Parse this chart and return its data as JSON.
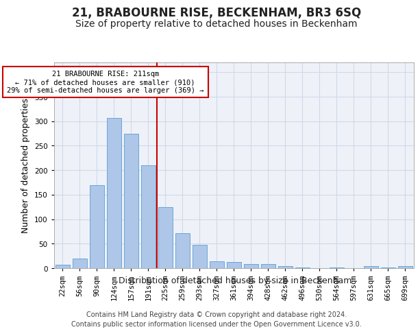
{
  "title": "21, BRABOURNE RISE, BECKENHAM, BR3 6SQ",
  "subtitle": "Size of property relative to detached houses in Beckenham",
  "xlabel": "Distribution of detached houses by size in Beckenham",
  "ylabel": "Number of detached properties",
  "categories": [
    "22sqm",
    "56sqm",
    "90sqm",
    "124sqm",
    "157sqm",
    "191sqm",
    "225sqm",
    "259sqm",
    "293sqm",
    "327sqm",
    "361sqm",
    "394sqm",
    "428sqm",
    "462sqm",
    "496sqm",
    "530sqm",
    "564sqm",
    "597sqm",
    "631sqm",
    "665sqm",
    "699sqm"
  ],
  "values": [
    7,
    20,
    170,
    307,
    275,
    210,
    125,
    72,
    48,
    14,
    12,
    8,
    8,
    4,
    2,
    0,
    2,
    0,
    4,
    1,
    4
  ],
  "bar_color": "#aec6e8",
  "bar_edge_color": "#5a9fd4",
  "grid_color": "#d0d8e8",
  "background_color": "#eef2f8",
  "vline_color": "#cc0000",
  "vline_x_index": 5.5,
  "annotation_text": "21 BRABOURNE RISE: 211sqm\n← 71% of detached houses are smaller (910)\n29% of semi-detached houses are larger (369) →",
  "annotation_box_color": "#ffffff",
  "annotation_box_edge_color": "#cc0000",
  "footer_line1": "Contains HM Land Registry data © Crown copyright and database right 2024.",
  "footer_line2": "Contains public sector information licensed under the Open Government Licence v3.0.",
  "ylim": [
    0,
    420
  ],
  "yticks": [
    0,
    50,
    100,
    150,
    200,
    250,
    300,
    350,
    400
  ],
  "title_fontsize": 12,
  "subtitle_fontsize": 10,
  "label_fontsize": 9,
  "tick_fontsize": 7.5,
  "footer_fontsize": 7,
  "ann_fontsize": 7.5
}
